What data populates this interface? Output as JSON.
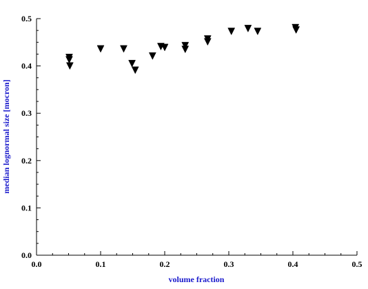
{
  "chart_data": {
    "type": "scatter",
    "title": "",
    "xlabel": "volume fraction",
    "ylabel": "median lognormal  size [mocron]",
    "xlim": [
      0.0,
      0.5
    ],
    "ylim": [
      0.0,
      0.5
    ],
    "x_ticks": [
      "0.0",
      "0.1",
      "0.2",
      "0.3",
      "0.4",
      "0.5"
    ],
    "y_ticks": [
      "0.0",
      "0.1",
      "0.2",
      "0.3",
      "0.4",
      "0.5"
    ],
    "grid": false,
    "marker": "triangle-down",
    "marker_color": "#000000",
    "axis_title_color": "#1a1acc",
    "series": [
      {
        "points": [
          [
            0.051,
            0.418
          ],
          [
            0.051,
            0.413
          ],
          [
            0.052,
            0.4
          ],
          [
            0.1,
            0.436
          ],
          [
            0.136,
            0.436
          ],
          [
            0.149,
            0.405
          ],
          [
            0.154,
            0.391
          ],
          [
            0.181,
            0.421
          ],
          [
            0.194,
            0.441
          ],
          [
            0.2,
            0.439
          ],
          [
            0.232,
            0.443
          ],
          [
            0.232,
            0.435
          ],
          [
            0.267,
            0.457
          ],
          [
            0.267,
            0.451
          ],
          [
            0.304,
            0.473
          ],
          [
            0.33,
            0.479
          ],
          [
            0.345,
            0.473
          ],
          [
            0.404,
            0.481
          ],
          [
            0.405,
            0.476
          ]
        ]
      }
    ]
  }
}
